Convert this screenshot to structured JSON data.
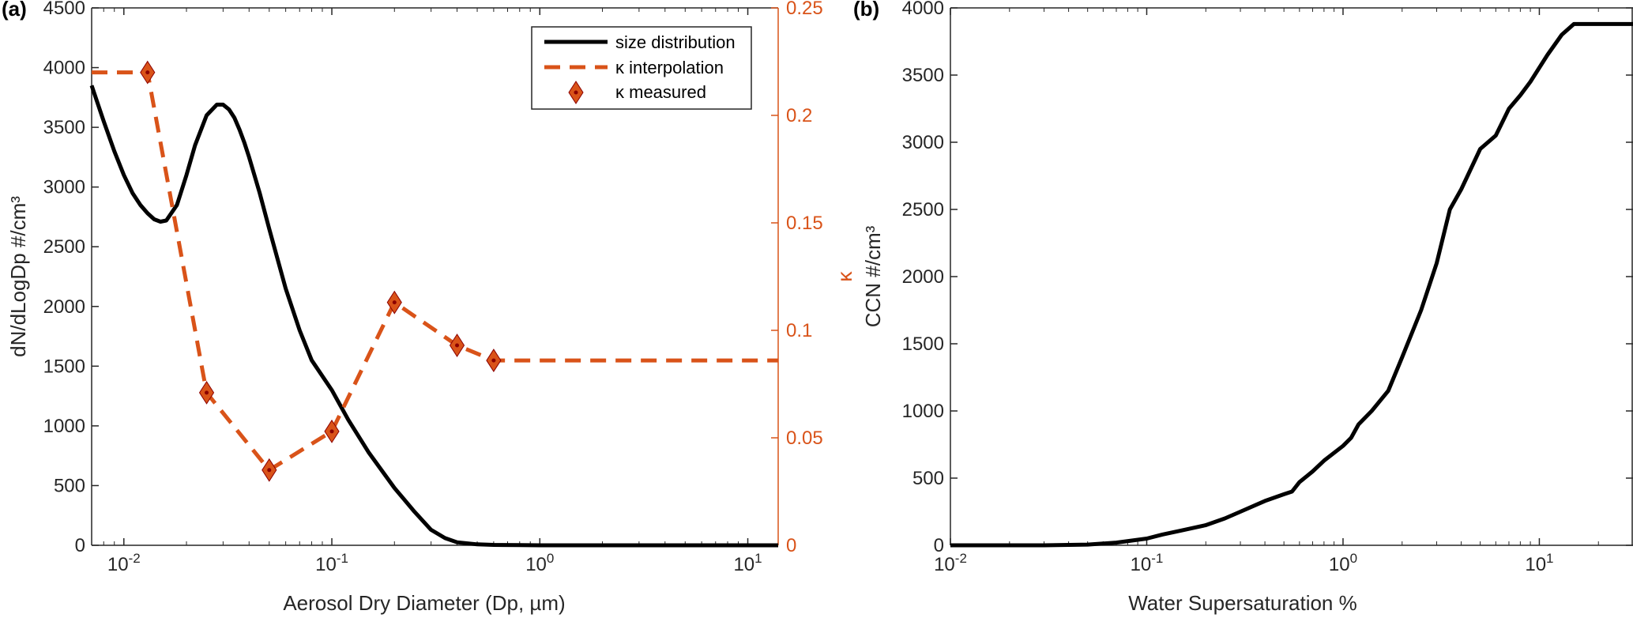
{
  "colors": {
    "size": "#000000",
    "kappa": "#D95319",
    "axis": "#262626",
    "marker_edge": "#D95319",
    "marker_center": "#8B0000"
  },
  "panels": {
    "a": "(a)",
    "b": "(b)"
  },
  "chart_data": [
    {
      "id": "a",
      "type": "line",
      "xlabel": "Aerosol Dry Diameter (Dp, µm)",
      "ylabel": "dN/dLogDp #/cm³",
      "ylabel_right": "κ",
      "xscale": "log",
      "xlim": [
        0.007,
        14
      ],
      "ylim": [
        0,
        4500
      ],
      "ylim_right": [
        0,
        0.25
      ],
      "grid": false,
      "legend_position": "top-right",
      "x_ticks": [
        {
          "value": 0.01,
          "base": "10",
          "exp": "-2"
        },
        {
          "value": 0.1,
          "base": "10",
          "exp": "-1"
        },
        {
          "value": 1,
          "base": "10",
          "exp": "0"
        },
        {
          "value": 10,
          "base": "10",
          "exp": "1"
        }
      ],
      "y_ticks": [
        "0",
        "500",
        "1000",
        "1500",
        "2000",
        "2500",
        "3000",
        "3500",
        "4000",
        "4500"
      ],
      "y_ticks_right": [
        "0",
        "0.05",
        "0.1",
        "0.15",
        "0.2",
        "0.25"
      ],
      "series": [
        {
          "name": "size distribution",
          "axis": "left",
          "style": "solid",
          "x": [
            0.007,
            0.008,
            0.009,
            0.01,
            0.011,
            0.012,
            0.013,
            0.014,
            0.015,
            0.016,
            0.018,
            0.02,
            0.022,
            0.025,
            0.028,
            0.03,
            0.032,
            0.034,
            0.036,
            0.038,
            0.04,
            0.045,
            0.05,
            0.06,
            0.07,
            0.08,
            0.1,
            0.12,
            0.15,
            0.2,
            0.25,
            0.3,
            0.35,
            0.4,
            0.5,
            0.6,
            0.8,
            1,
            2,
            5,
            14
          ],
          "y": [
            3850,
            3550,
            3300,
            3100,
            2950,
            2850,
            2780,
            2730,
            2710,
            2720,
            2850,
            3100,
            3350,
            3600,
            3690,
            3690,
            3650,
            3580,
            3480,
            3370,
            3250,
            2950,
            2650,
            2150,
            1800,
            1550,
            1300,
            1050,
            780,
            480,
            280,
            130,
            60,
            25,
            8,
            3,
            1,
            0,
            0,
            0,
            0
          ]
        },
        {
          "name": "κ interpolation",
          "axis": "right",
          "style": "dashed",
          "x": [
            0.007,
            0.013,
            0.025,
            0.05,
            0.1,
            0.2,
            0.4,
            0.6,
            14
          ],
          "y": [
            0.22,
            0.22,
            0.071,
            0.035,
            0.053,
            0.113,
            0.093,
            0.086,
            0.086
          ]
        },
        {
          "name": "κ measured",
          "axis": "right",
          "style": "marker",
          "x": [
            0.013,
            0.025,
            0.05,
            0.1,
            0.2,
            0.4,
            0.6
          ],
          "y": [
            0.22,
            0.071,
            0.035,
            0.053,
            0.113,
            0.093,
            0.086
          ]
        }
      ]
    },
    {
      "id": "b",
      "type": "line",
      "xlabel": "Water Supersaturation %",
      "ylabel": "CCN #/cm³",
      "ylabel_extra": "κ",
      "xscale": "log",
      "xlim": [
        0.01,
        30
      ],
      "ylim": [
        0,
        4000
      ],
      "grid": false,
      "x_ticks": [
        {
          "value": 0.01,
          "base": "10",
          "exp": "-2"
        },
        {
          "value": 0.1,
          "base": "10",
          "exp": "-1"
        },
        {
          "value": 1,
          "base": "10",
          "exp": "0"
        },
        {
          "value": 10,
          "base": "10",
          "exp": "1"
        }
      ],
      "y_ticks": [
        "0",
        "500",
        "1000",
        "1500",
        "2000",
        "2500",
        "3000",
        "3500",
        "4000"
      ],
      "series": [
        {
          "x": [
            0.01,
            0.03,
            0.05,
            0.07,
            0.1,
            0.12,
            0.15,
            0.2,
            0.25,
            0.3,
            0.4,
            0.5,
            0.55,
            0.6,
            0.7,
            0.8,
            1.0,
            1.1,
            1.2,
            1.4,
            1.7,
            2.0,
            2.5,
            3.0,
            3.5,
            4.0,
            5.0,
            6.0,
            7.0,
            8.0,
            9.0,
            11.0,
            13.0,
            15.0,
            30.0
          ],
          "y": [
            0,
            0,
            5,
            20,
            50,
            80,
            110,
            150,
            200,
            250,
            330,
            380,
            400,
            470,
            550,
            630,
            740,
            800,
            900,
            1000,
            1150,
            1400,
            1750,
            2100,
            2500,
            2650,
            2950,
            3050,
            3250,
            3350,
            3450,
            3650,
            3800,
            3880,
            3880
          ]
        }
      ]
    }
  ]
}
